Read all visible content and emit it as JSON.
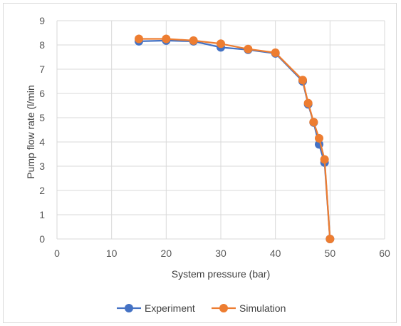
{
  "chart_data": {
    "type": "line",
    "title": "",
    "xlabel": "System pressure (bar)",
    "ylabel": "Pump flow rate (l/min",
    "xlim": [
      0,
      60
    ],
    "ylim": [
      0,
      9
    ],
    "xticks": [
      "0",
      "10",
      "20",
      "30",
      "40",
      "50",
      "60"
    ],
    "yticks": [
      "0",
      "1",
      "2",
      "3",
      "4",
      "5",
      "6",
      "7",
      "8",
      "9"
    ],
    "grid": "vertical and horizontal major gridlines",
    "legend_position": "bottom",
    "series": [
      {
        "name": "Experiment",
        "color": "#4472c4",
        "x": [
          15,
          20,
          25,
          30,
          35,
          40,
          45,
          46,
          47,
          48,
          49,
          50
        ],
        "y": [
          8.15,
          8.18,
          8.15,
          7.9,
          7.8,
          7.65,
          6.5,
          5.55,
          4.8,
          3.9,
          3.15,
          0
        ]
      },
      {
        "name": "Simulation",
        "color": "#ed7d31",
        "x": [
          15,
          20,
          25,
          30,
          35,
          40,
          45,
          46,
          47,
          48,
          49,
          50
        ],
        "y": [
          8.25,
          8.25,
          8.18,
          8.05,
          7.83,
          7.68,
          6.55,
          5.6,
          4.82,
          4.15,
          3.28,
          0
        ]
      }
    ]
  }
}
